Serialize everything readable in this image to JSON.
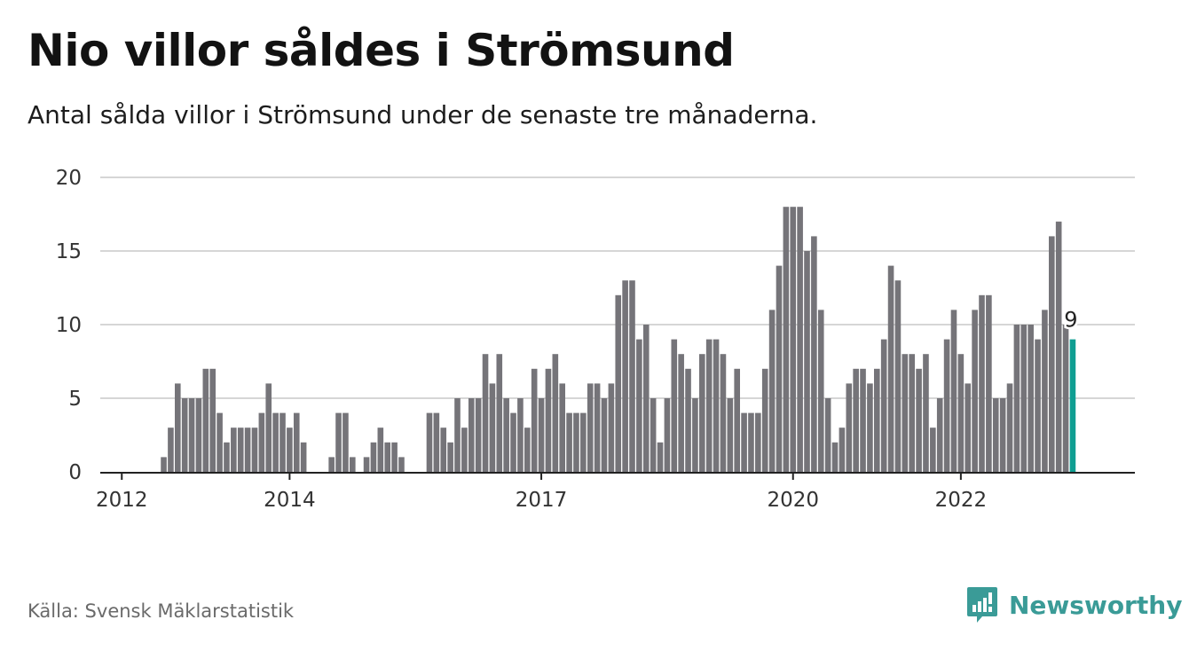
{
  "header": {
    "title": "Nio villor såldes i Strömsund",
    "subtitle": "Antal sålda villor i Strömsund under de senaste tre månaderna."
  },
  "footer": {
    "source": "Källa: Svensk Mäklarstatistik",
    "brand": "Newsworthy",
    "brand_icon": "bar-chart-speech-bubble-icon"
  },
  "colors": {
    "bar": "#757479",
    "highlight": "#0f9e92",
    "grid": "#d6d6d6",
    "axis": "#222222",
    "brand": "#3a9b97"
  },
  "chart_data": {
    "type": "bar",
    "title": "Nio villor såldes i Strömsund",
    "xlabel": "",
    "ylabel": "",
    "ylim": [
      0,
      20
    ],
    "yticks": [
      0,
      5,
      10,
      15,
      20
    ],
    "grid": true,
    "x_tick_labels": [
      {
        "label": "2012",
        "index": 2
      },
      {
        "label": "2014",
        "index": 26
      },
      {
        "label": "2017",
        "index": 62
      },
      {
        "label": "2020",
        "index": 98
      },
      {
        "label": "2022",
        "index": 122
      }
    ],
    "values": [
      0,
      0,
      0,
      0,
      0,
      0,
      0,
      0,
      1,
      3,
      6,
      5,
      5,
      5,
      7,
      7,
      4,
      2,
      3,
      3,
      3,
      3,
      4,
      6,
      4,
      4,
      3,
      4,
      2,
      0,
      0,
      0,
      1,
      4,
      4,
      1,
      0,
      1,
      2,
      3,
      2,
      2,
      1,
      0,
      0,
      0,
      4,
      4,
      3,
      2,
      5,
      3,
      5,
      5,
      8,
      6,
      8,
      5,
      4,
      5,
      3,
      7,
      5,
      7,
      8,
      6,
      4,
      4,
      4,
      6,
      6,
      5,
      6,
      12,
      13,
      13,
      9,
      10,
      5,
      2,
      5,
      9,
      8,
      7,
      5,
      8,
      9,
      9,
      8,
      5,
      7,
      4,
      4,
      4,
      7,
      11,
      14,
      18,
      18,
      18,
      15,
      16,
      11,
      5,
      2,
      3,
      6,
      7,
      7,
      6,
      7,
      9,
      14,
      13,
      8,
      8,
      7,
      8,
      3,
      5,
      9,
      11,
      8,
      6,
      11,
      12,
      12,
      5,
      5,
      6,
      10,
      10,
      10,
      9,
      11,
      16,
      17,
      10,
      9
    ],
    "highlight_index": 138,
    "highlight_label": "9"
  }
}
